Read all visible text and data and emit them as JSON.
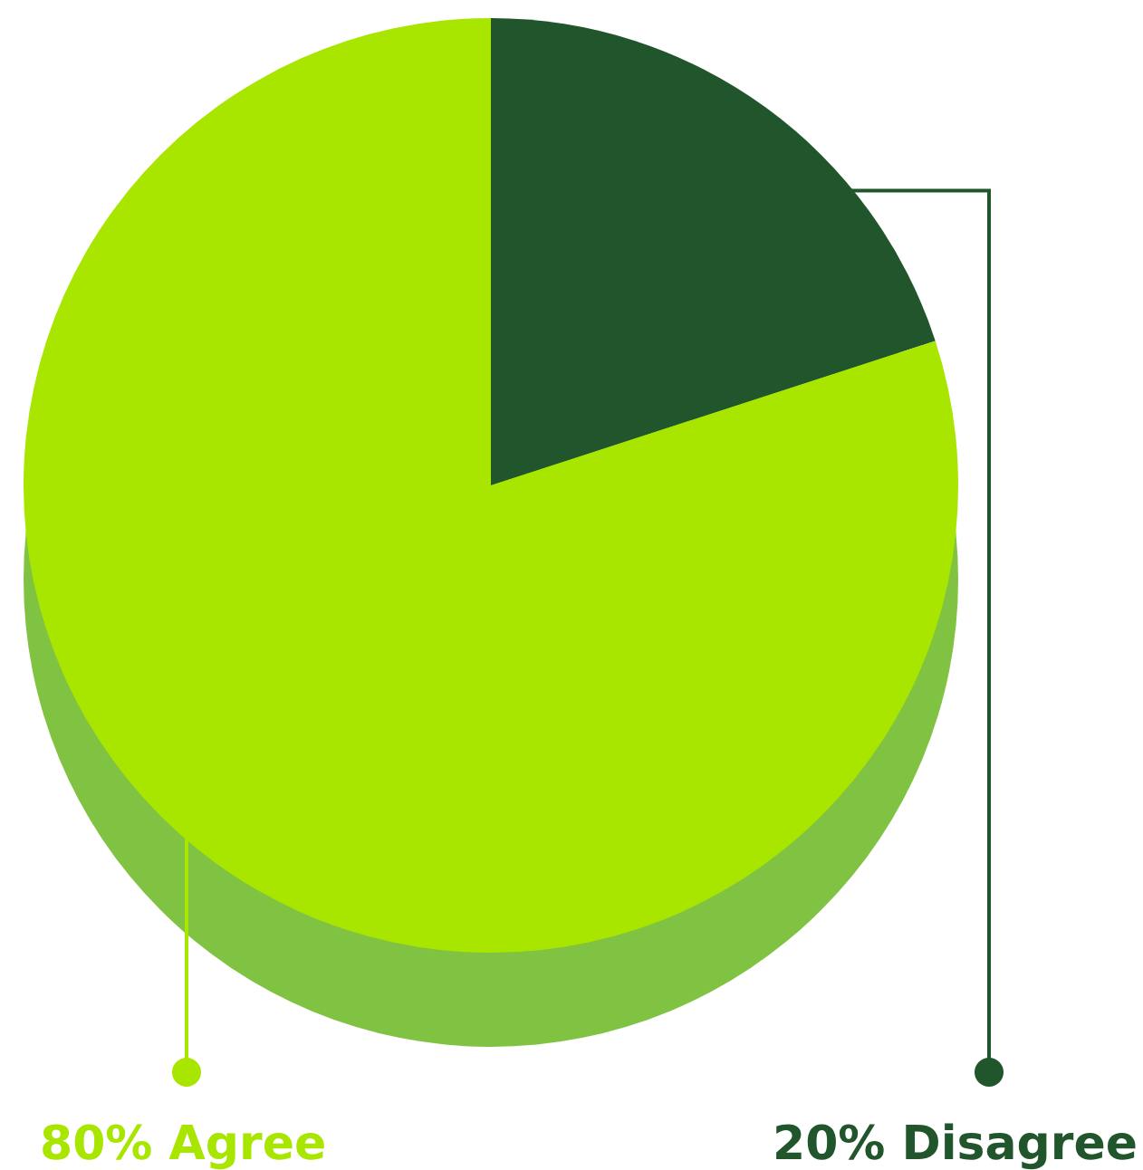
{
  "chart_data": {
    "type": "pie",
    "categories": [
      "Disagree",
      "Agree"
    ],
    "values": [
      20,
      80
    ],
    "colors": [
      "#21552b",
      "#a8e600"
    ],
    "value_labels": [
      "20%",
      "80%"
    ],
    "legend": "bottom"
  }
}
